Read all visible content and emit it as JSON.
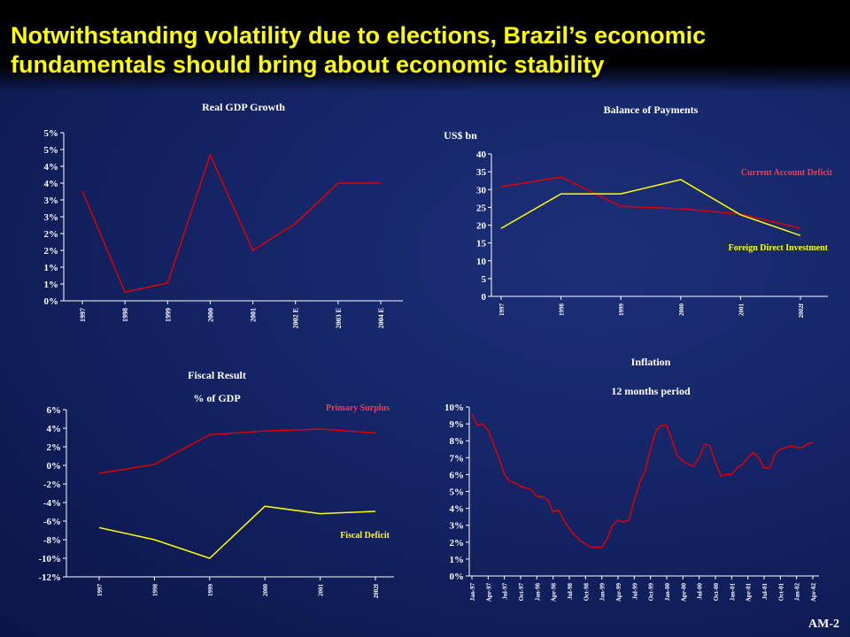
{
  "title_lines": [
    "Notwithstanding volatility due to elections, Brazil’s economic",
    "fundamentals should bring about economic stability"
  ],
  "footer": "AM-2",
  "chart_data": [
    {
      "type": "line",
      "title": "Real GDP Growth",
      "categories": [
        "1997",
        "1998",
        "1999",
        "2000",
        "2001",
        "2002 E",
        "2003 E",
        "2004 E"
      ],
      "values": [
        3.26,
        0.26,
        0.53,
        4.34,
        1.5,
        2.3,
        3.5,
        3.5
      ],
      "color": "#e00000",
      "ylim": [
        0,
        5
      ],
      "yticks": [
        {
          "value": 0,
          "label": "0%"
        },
        {
          "value": 0.5,
          "label": "1%"
        },
        {
          "value": 1,
          "label": "1%"
        },
        {
          "value": 1.5,
          "label": "2%"
        },
        {
          "value": 2,
          "label": "2%"
        },
        {
          "value": 2.5,
          "label": "3%"
        },
        {
          "value": 3,
          "label": "3%"
        },
        {
          "value": 3.5,
          "label": "4%"
        },
        {
          "value": 4,
          "label": "4%"
        },
        {
          "value": 4.5,
          "label": "5%"
        },
        {
          "value": 5,
          "label": "5%"
        }
      ]
    },
    {
      "type": "line",
      "title": "Balance of Payments",
      "y_label": "US$ bn",
      "categories": [
        "1997",
        "1998",
        "1999",
        "2000",
        "2001",
        "2002f"
      ],
      "series": [
        {
          "name": "Current Account Deficit",
          "color": "#e00000",
          "values": [
            30.8,
            33.5,
            25.3,
            24.6,
            23.1,
            19.1
          ]
        },
        {
          "name": "Foreign Direct Investment",
          "color": "#ffff00",
          "values": [
            19.1,
            28.8,
            28.8,
            32.8,
            22.9,
            17.1
          ]
        }
      ],
      "ylim": [
        0,
        40
      ],
      "yticks": [
        0,
        5,
        10,
        15,
        20,
        25,
        30,
        35,
        40
      ]
    },
    {
      "type": "line",
      "title": "Fiscal Result",
      "subtitle": "% of GDP",
      "categories": [
        "1997",
        "1998",
        "1999",
        "2000",
        "2001",
        "2002f"
      ],
      "series": [
        {
          "name": "Primary Surplus",
          "color": "#e00000",
          "values": [
            -0.86,
            0.1,
            3.3,
            3.7,
            3.9,
            3.5
          ]
        },
        {
          "name": "Fiscal Deficit",
          "color": "#ffff00",
          "values": [
            -6.7,
            -8.0,
            -10.0,
            -4.4,
            -5.2,
            -4.95
          ]
        }
      ],
      "ylim": [
        -12,
        6
      ],
      "yticks": [
        {
          "value": -12,
          "label": "-12%"
        },
        {
          "value": -10,
          "label": "-10%"
        },
        {
          "value": -8,
          "label": "-8%"
        },
        {
          "value": -6,
          "label": "-6%"
        },
        {
          "value": -4,
          "label": "-4%"
        },
        {
          "value": -2,
          "label": "-2%"
        },
        {
          "value": 0,
          "label": "0%"
        },
        {
          "value": 2,
          "label": "2%"
        },
        {
          "value": 4,
          "label": "4%"
        },
        {
          "value": 6,
          "label": "6%"
        }
      ]
    },
    {
      "type": "line",
      "title": "Inflation",
      "subtitle": "12 months period",
      "categories": [
        "Jan-97",
        null,
        null,
        "Apr-97",
        null,
        null,
        "Jul-97",
        null,
        null,
        "Oct-97",
        null,
        null,
        "Jan-98",
        null,
        null,
        "Apr-98",
        null,
        null,
        "Jul-98",
        null,
        null,
        "Oct-98",
        null,
        null,
        "Jan-99",
        null,
        null,
        "Apr-99",
        null,
        null,
        "Jul-99",
        null,
        null,
        "Oct-99",
        null,
        null,
        "Jan-00",
        null,
        null,
        "Apr-00",
        null,
        null,
        "Jul-00",
        null,
        null,
        "Oct-00",
        null,
        null,
        "Jan-01",
        null,
        null,
        "Apr-01",
        null,
        null,
        "Jul-01",
        null,
        null,
        "Oct-01",
        null,
        null,
        "Jan-02",
        null,
        null,
        "Apr-02"
      ],
      "values": [
        9.6,
        8.9,
        9.0,
        8.6,
        7.8,
        7.0,
        6.0,
        5.6,
        5.5,
        5.3,
        5.2,
        5.1,
        4.7,
        4.7,
        4.5,
        3.8,
        3.9,
        3.3,
        2.8,
        2.4,
        2.1,
        1.9,
        1.7,
        1.7,
        1.7,
        2.2,
        3.0,
        3.3,
        3.2,
        3.3,
        4.5,
        5.5,
        6.2,
        7.5,
        8.6,
        8.9,
        8.9,
        8.0,
        7.1,
        6.8,
        6.6,
        6.5,
        7.0,
        7.8,
        7.7,
        6.7,
        5.9,
        6.0,
        6.0,
        6.4,
        6.6,
        7.0,
        7.3,
        7.0,
        6.4,
        6.4,
        7.2,
        7.5,
        7.6,
        7.7,
        7.6,
        7.6,
        7.8,
        7.9
      ],
      "color": "#e00000",
      "ylim": [
        0,
        10
      ],
      "yticks": [
        {
          "value": 0,
          "label": "0%"
        },
        {
          "value": 1,
          "label": "1%"
        },
        {
          "value": 2,
          "label": "2%"
        },
        {
          "value": 3,
          "label": "3%"
        },
        {
          "value": 4,
          "label": "4%"
        },
        {
          "value": 5,
          "label": "5%"
        },
        {
          "value": 6,
          "label": "6%"
        },
        {
          "value": 7,
          "label": "7%"
        },
        {
          "value": 8,
          "label": "8%"
        },
        {
          "value": 9,
          "label": "9%"
        },
        {
          "value": 10,
          "label": "10%"
        }
      ]
    }
  ]
}
